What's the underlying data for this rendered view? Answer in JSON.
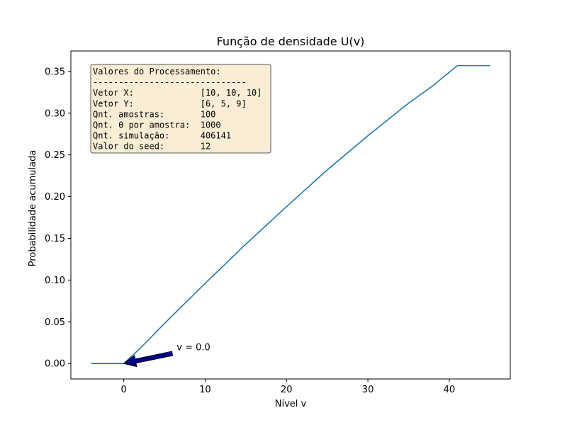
{
  "chart_data": {
    "type": "line",
    "title": "Função de densidade U(v)",
    "xlabel": "Nível v",
    "ylabel": "Probabilidade acumulada",
    "xlim": [
      -6.5,
      47.5
    ],
    "ylim": [
      -0.0185,
      0.3745
    ],
    "x_ticks": [
      0,
      10,
      20,
      30,
      40
    ],
    "x_tick_labels": [
      "0",
      "10",
      "20",
      "30",
      "40"
    ],
    "y_ticks": [
      0.0,
      0.05,
      0.1,
      0.15,
      0.2,
      0.25,
      0.3,
      0.35
    ],
    "y_tick_labels": [
      "0.00",
      "0.05",
      "0.10",
      "0.15",
      "0.20",
      "0.25",
      "0.30",
      "0.35"
    ],
    "grid": false,
    "series": [
      {
        "color": "#1f77b4",
        "x": [
          -4,
          0,
          2,
          5,
          10,
          15,
          20,
          25,
          30,
          35,
          38,
          41,
          45
        ],
        "y": [
          0.0,
          0.0,
          0.018,
          0.048,
          0.096,
          0.143,
          0.188,
          0.232,
          0.273,
          0.312,
          0.333,
          0.357,
          0.357
        ]
      }
    ],
    "annotation": {
      "text": "v = 0.0",
      "point": [
        0,
        0
      ],
      "text_pos": [
        6.5,
        0.016
      ],
      "arrow_color": "#00008b"
    },
    "info_box": {
      "bg_color": "#f5deb3",
      "lines": [
        "Valores do Processamento:",
        "------------------------------",
        "Vetor X:             [10, 10, 10]",
        "Vetor Y:             [6, 5, 9]",
        "Qnt. amostras:       100",
        "Qnt. θ por amostra:  1000",
        "Qnt. simulação:      406141",
        "Valor do seed:       12"
      ]
    }
  }
}
